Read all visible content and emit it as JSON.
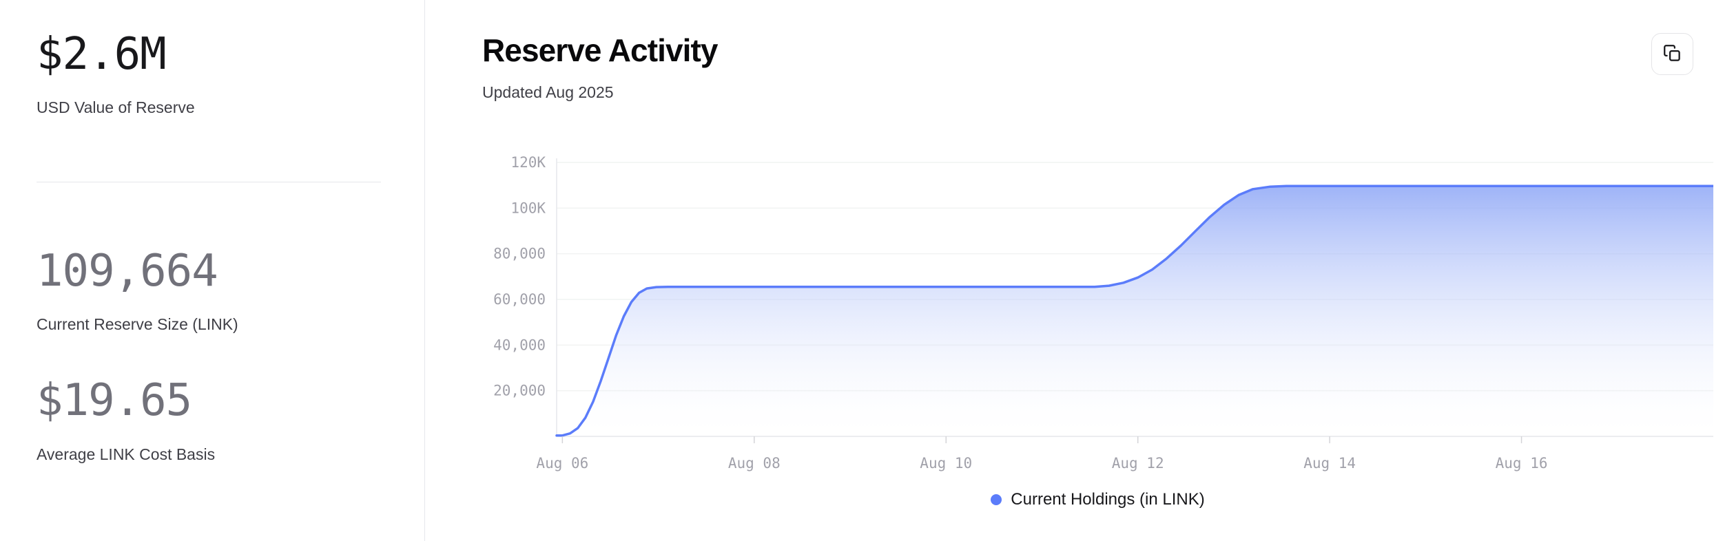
{
  "stats_panel": {
    "stats": [
      {
        "value": "$2.6M",
        "label": "USD Value of Reserve"
      },
      {
        "value": "109,664",
        "label": "Current Reserve Size (LINK)"
      },
      {
        "value": "$19.65",
        "label": "Average LINK Cost Basis"
      }
    ]
  },
  "header": {
    "title": "Reserve Activity",
    "subtitle": "Updated Aug 2025"
  },
  "legend": {
    "label": "Current Holdings (in LINK)",
    "dot_color": "#5b7cfa"
  },
  "chart_data": {
    "type": "area",
    "title": "Reserve Activity",
    "xlabel": "",
    "ylabel": "",
    "legend_position": "bottom",
    "grid": true,
    "ylim": [
      0,
      120000
    ],
    "xlim_days": [
      5.94,
      18.0
    ],
    "y_ticks": [
      {
        "value": 120000,
        "label": "120K"
      },
      {
        "value": 100000,
        "label": "100K"
      },
      {
        "value": 80000,
        "label": "80,000"
      },
      {
        "value": 60000,
        "label": "60,000"
      },
      {
        "value": 40000,
        "label": "40,000"
      },
      {
        "value": 20000,
        "label": "20,000"
      }
    ],
    "x_ticks": [
      {
        "day": 6,
        "label": "Aug 06"
      },
      {
        "day": 8,
        "label": "Aug 08"
      },
      {
        "day": 10,
        "label": "Aug 10"
      },
      {
        "day": 12,
        "label": "Aug 12"
      },
      {
        "day": 14,
        "label": "Aug 14"
      },
      {
        "day": 16,
        "label": "Aug 16"
      }
    ],
    "series": [
      {
        "name": "Current Holdings (in LINK)",
        "points": [
          [
            5.94,
            350
          ],
          [
            6.0,
            400
          ],
          [
            6.08,
            1300
          ],
          [
            6.16,
            3600
          ],
          [
            6.24,
            8200
          ],
          [
            6.32,
            15200
          ],
          [
            6.4,
            24200
          ],
          [
            6.48,
            34200
          ],
          [
            6.56,
            44200
          ],
          [
            6.64,
            52600
          ],
          [
            6.72,
            58900
          ],
          [
            6.8,
            62900
          ],
          [
            6.88,
            64800
          ],
          [
            6.98,
            65400
          ],
          [
            7.1,
            65500
          ],
          [
            11.55,
            65500
          ],
          [
            11.7,
            66000
          ],
          [
            11.85,
            67300
          ],
          [
            12.0,
            69600
          ],
          [
            12.15,
            73100
          ],
          [
            12.3,
            77900
          ],
          [
            12.45,
            83600
          ],
          [
            12.6,
            89900
          ],
          [
            12.75,
            96100
          ],
          [
            12.9,
            101500
          ],
          [
            13.05,
            105700
          ],
          [
            13.2,
            108300
          ],
          [
            13.38,
            109400
          ],
          [
            13.55,
            109664
          ],
          [
            18.1,
            109664
          ]
        ]
      }
    ],
    "colors": {
      "line": "#5b7cfa",
      "fill_top": "#7f9bf5",
      "fill_bottom": "#ffffff",
      "grid": "#f1f3f2",
      "axis": "#e5e7eb",
      "tick_mark": "#d4d4d8",
      "tick_text": "#a1a1aa"
    }
  }
}
